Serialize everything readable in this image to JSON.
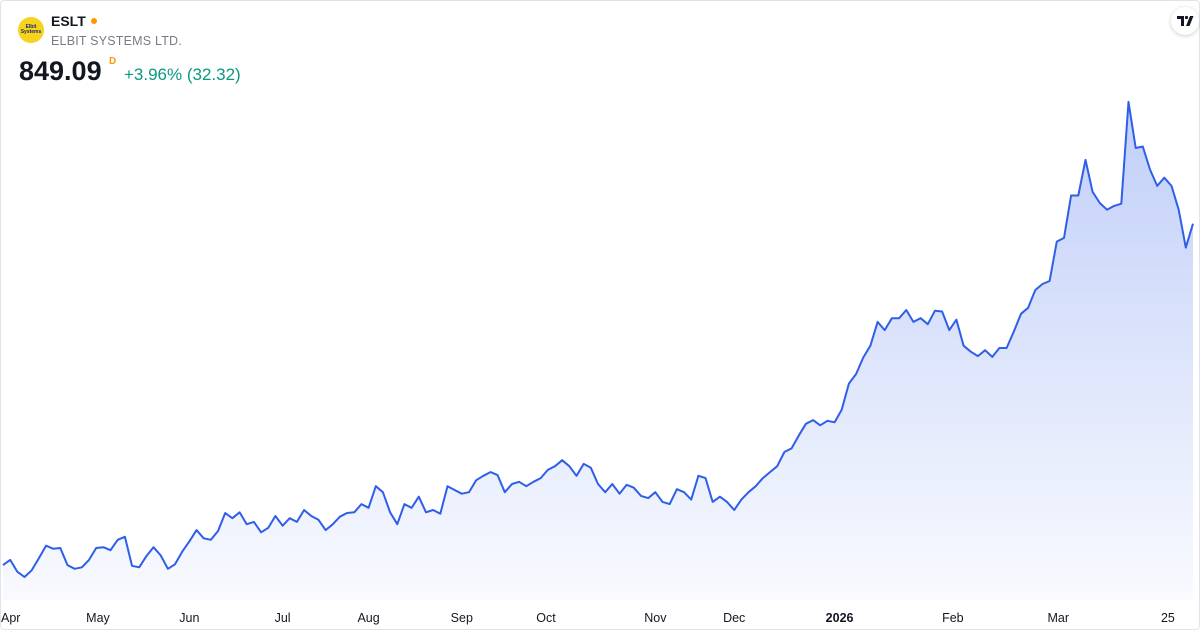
{
  "header": {
    "logo_text": "Elbit Systems",
    "symbol": "ESLT",
    "company": "ELBIT SYSTEMS LTD.",
    "price": "849.09",
    "price_flag": "D",
    "change": "+3.96% (32.32)"
  },
  "chart_data": {
    "type": "area",
    "color": "#2f5ee8",
    "values": [
      390,
      397,
      381,
      374,
      383,
      399,
      416,
      412,
      413,
      390,
      385,
      387,
      397,
      413,
      414,
      410,
      424,
      428,
      389,
      387,
      402,
      414,
      403,
      385,
      391,
      408,
      422,
      437,
      426,
      424,
      436,
      460,
      453,
      461,
      445,
      448,
      434,
      440,
      456,
      443,
      453,
      448,
      464,
      456,
      451,
      437,
      445,
      455,
      460,
      461,
      472,
      467,
      496,
      488,
      461,
      445,
      472,
      467,
      482,
      461,
      464,
      459,
      496,
      491,
      486,
      488,
      504,
      510,
      515,
      511,
      488,
      499,
      502,
      496,
      502,
      507,
      518,
      523,
      531,
      523,
      510,
      526,
      521,
      499,
      488,
      499,
      486,
      498,
      494,
      483,
      480,
      488,
      475,
      472,
      492,
      488,
      478,
      510,
      507,
      475,
      482,
      475,
      464,
      478,
      488,
      496,
      507,
      515,
      523,
      542,
      547,
      564,
      580,
      585,
      578,
      584,
      582,
      599,
      634,
      647,
      669,
      685,
      717,
      706,
      722,
      722,
      733,
      717,
      722,
      714,
      732,
      731,
      706,
      720,
      685,
      677,
      671,
      679,
      670,
      682,
      682,
      704,
      728,
      736,
      760,
      768,
      772,
      825,
      830,
      887,
      887,
      935,
      892,
      877,
      868,
      873,
      876,
      1013,
      951,
      953,
      922,
      900,
      911,
      900,
      868,
      817,
      849.09
    ],
    "xlim": [
      0,
      166
    ],
    "xticks": [
      {
        "value": 0,
        "label": "Apr"
      },
      {
        "value": 13.25,
        "label": "May"
      },
      {
        "value": 26,
        "label": "Jun"
      },
      {
        "value": 39,
        "label": "Jul"
      },
      {
        "value": 51,
        "label": "Aug"
      },
      {
        "value": 64,
        "label": "Sep"
      },
      {
        "value": 75.75,
        "label": "Oct"
      },
      {
        "value": 91,
        "label": "Nov"
      },
      {
        "value": 102,
        "label": "Dec"
      },
      {
        "value": 116.7,
        "label": "2026"
      },
      {
        "value": 132.5,
        "label": "Feb"
      },
      {
        "value": 147.2,
        "label": "Mar"
      },
      {
        "value": 162.5,
        "label": "25"
      }
    ],
    "ylim": [
      343,
      1150
    ]
  }
}
